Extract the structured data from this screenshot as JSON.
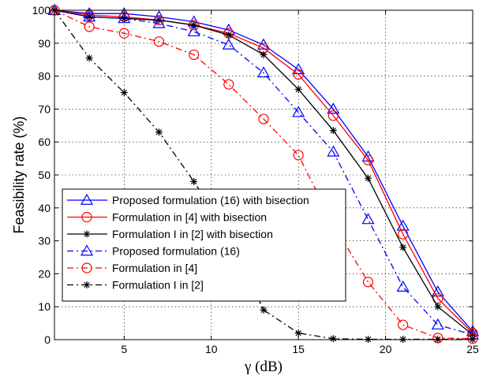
{
  "chart_data": {
    "type": "line",
    "xlabel": "γ (dB)",
    "ylabel": "Feasibility rate (%)",
    "xlim": [
      1,
      25
    ],
    "ylim": [
      0,
      100
    ],
    "xticks": [
      5,
      10,
      15,
      20,
      25
    ],
    "yticks": [
      0,
      10,
      20,
      30,
      40,
      50,
      60,
      70,
      80,
      90,
      100
    ],
    "grid": true,
    "legend_position": "lower-left",
    "x": [
      1,
      3,
      5,
      7,
      9,
      11,
      13,
      15,
      17,
      19,
      21,
      23,
      25
    ],
    "series": [
      {
        "name": "Proposed formulation (16) with bisection",
        "color": "#0000ff",
        "line_style": "solid",
        "marker": "triangle",
        "values": [
          100,
          99,
          99,
          98,
          96.5,
          94,
          89.5,
          82,
          70,
          55.5,
          34.5,
          14.5,
          2.5
        ]
      },
      {
        "name": "Formulation in [4] with bisection",
        "color": "#ff0000",
        "line_style": "solid",
        "marker": "circle",
        "values": [
          100,
          98.5,
          98,
          97,
          95.5,
          93,
          88.5,
          80.5,
          68,
          54.5,
          32,
          12.5,
          2
        ]
      },
      {
        "name": "Formulation I in [2] with bisection",
        "color": "#000000",
        "line_style": "solid",
        "marker": "star",
        "values": [
          100,
          98,
          97.5,
          97,
          95.5,
          92.5,
          86.5,
          76,
          63.5,
          49,
          28,
          10,
          1.5
        ]
      },
      {
        "name": "Proposed formulation (16)",
        "color": "#0000ff",
        "line_style": "dashdot",
        "marker": "triangle",
        "values": [
          100,
          98,
          97.5,
          96,
          93.5,
          89.5,
          81,
          69,
          57,
          36.5,
          16,
          4.5,
          1.5
        ]
      },
      {
        "name": "Formulation in [4]",
        "color": "#ff0000",
        "line_style": "dashdot",
        "marker": "circle",
        "values": [
          100,
          95,
          93,
          90.5,
          86.5,
          77.5,
          67,
          56,
          35,
          17.5,
          4.5,
          0.5,
          0.3
        ]
      },
      {
        "name": "Formulation I in [2]",
        "color": "#000000",
        "line_style": "dashdot",
        "marker": "star",
        "values": [
          100,
          85.5,
          75,
          63,
          48,
          32,
          9,
          2,
          0.3,
          0.1,
          0.1,
          0.1,
          0.1
        ]
      }
    ]
  }
}
